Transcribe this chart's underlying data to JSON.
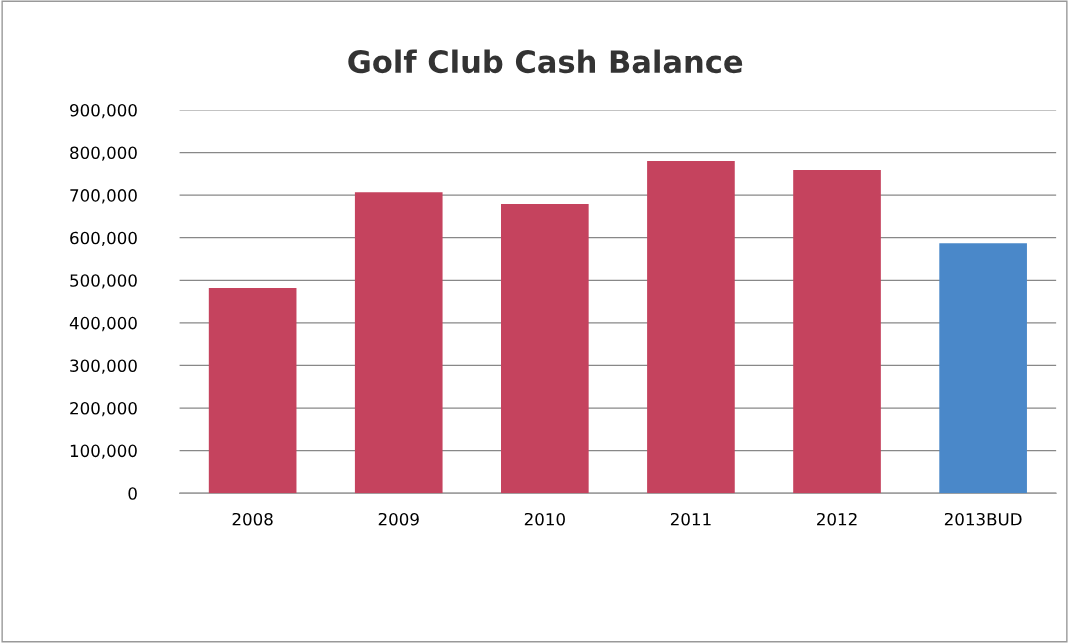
{
  "chart_data": {
    "type": "bar",
    "title": "Golf Club Cash Balance",
    "categories": [
      "2008",
      "2009",
      "2010",
      "2011",
      "2012",
      "2013BUD"
    ],
    "values": [
      482000,
      707000,
      679000,
      780000,
      759000,
      587000
    ],
    "colors": [
      "#c5435e",
      "#c5435e",
      "#c5435e",
      "#c5435e",
      "#c5435e",
      "#4a88c9"
    ],
    "ylim": [
      0,
      900000
    ],
    "yticks": [
      {
        "value": 0,
        "label": "0"
      },
      {
        "value": 100000,
        "label": "100,000"
      },
      {
        "value": 200000,
        "label": "200,000"
      },
      {
        "value": 300000,
        "label": "300,000"
      },
      {
        "value": 400000,
        "label": "400,000"
      },
      {
        "value": 500000,
        "label": "500,000"
      },
      {
        "value": 600000,
        "label": "600,000"
      },
      {
        "value": 700000,
        "label": "700,000"
      },
      {
        "value": 800000,
        "label": "800,000"
      },
      {
        "value": 900000,
        "label": "900,000"
      }
    ],
    "grid": "y"
  }
}
